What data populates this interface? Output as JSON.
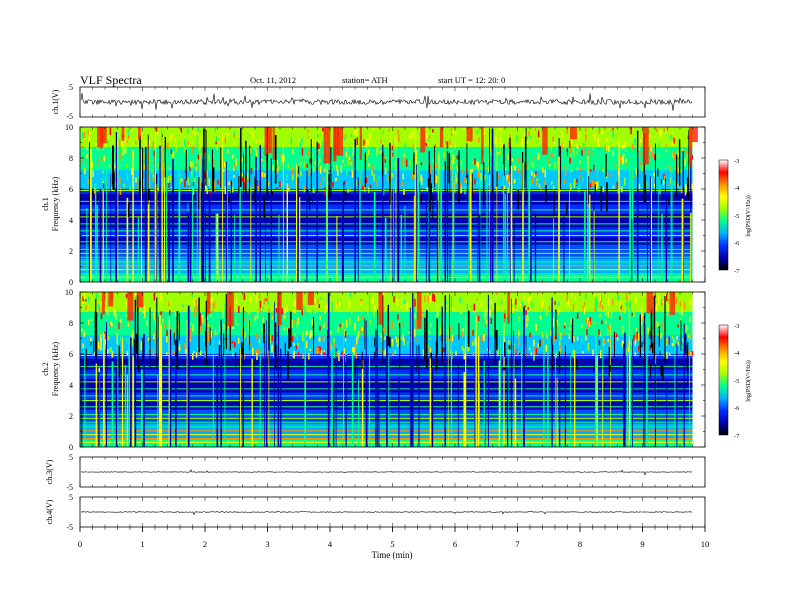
{
  "header": {
    "title": "VLF  Spectra",
    "date": "Oct. 11, 2012",
    "station": "station= ATH",
    "start": "start  UT  =    12: 20: 0"
  },
  "colors": {
    "colormap": [
      "#000000",
      "#0000b0",
      "#0030ff",
      "#00b0ff",
      "#00ff90",
      "#a0ff00",
      "#ffff00",
      "#ff9000",
      "#ff0000",
      "#ffffff"
    ]
  },
  "chart_data": {
    "type": "heatmap",
    "xlabel": "Time  (min)",
    "xlim": [
      0,
      10
    ],
    "x_ticks": [
      "0",
      "1",
      "2",
      "3",
      "4",
      "5",
      "6",
      "7",
      "8",
      "9",
      "10"
    ],
    "data_end_min": 9.8,
    "panels": [
      {
        "id": "ch1-waveform",
        "type": "line",
        "ylabel": "ch.1(V)",
        "ylim": [
          -5,
          5
        ],
        "y_ticks": [
          "5",
          "-5"
        ]
      },
      {
        "id": "ch1-spectrogram",
        "type": "heatmap",
        "ylabel_top": "ch.1",
        "ylabel": "Frequency  (kHz)",
        "ylim": [
          0,
          10
        ],
        "y_ticks": [
          "10",
          "8",
          "6",
          "4",
          "2",
          "0"
        ],
        "colorbar": {
          "label": "log(PSD(V²/Hz))",
          "range": [
            -7,
            -3
          ],
          "ticks": [
            "-3",
            "-4",
            "-5",
            "-6",
            "-7"
          ]
        }
      },
      {
        "id": "ch2-spectrogram",
        "type": "heatmap",
        "ylabel_top": "ch.2",
        "ylabel": "Frequency  (kHz)",
        "ylim": [
          0,
          10
        ],
        "y_ticks": [
          "10",
          "8",
          "6",
          "4",
          "2",
          "0"
        ],
        "colorbar": {
          "label": "log(PSD(V²/Hz))",
          "range": [
            -7,
            -3
          ],
          "ticks": [
            "-3",
            "-4",
            "-5",
            "-6",
            "-7"
          ]
        }
      },
      {
        "id": "ch3-waveform",
        "type": "line",
        "ylabel": "ch.3(V)",
        "ylim": [
          -5,
          5
        ],
        "y_ticks": [
          "5",
          "-5"
        ]
      },
      {
        "id": "ch4-waveform",
        "type": "line",
        "ylabel": "ch.4(V)",
        "ylim": [
          -5,
          5
        ],
        "y_ticks": [
          "5",
          "-5"
        ]
      }
    ]
  }
}
